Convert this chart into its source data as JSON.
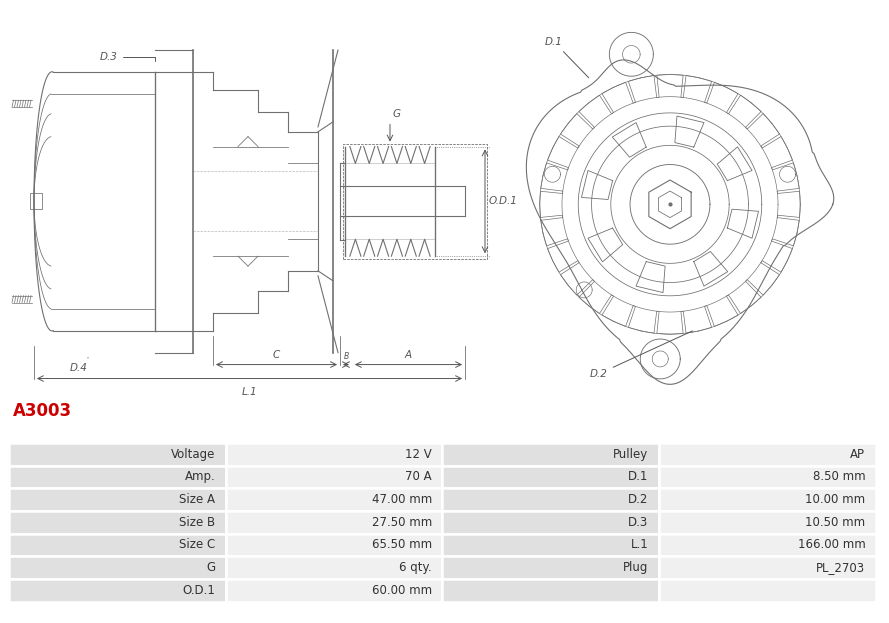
{
  "title": "A3003",
  "title_color": "#cc0000",
  "table_rows": [
    [
      "Voltage",
      "12 V",
      "Pulley",
      "AP"
    ],
    [
      "Amp.",
      "70 A",
      "D.1",
      "8.50 mm"
    ],
    [
      "Size A",
      "47.00 mm",
      "D.2",
      "10.00 mm"
    ],
    [
      "Size B",
      "27.50 mm",
      "D.3",
      "10.50 mm"
    ],
    [
      "Size C",
      "65.50 mm",
      "L.1",
      "166.00 mm"
    ],
    [
      "G",
      "6 qty.",
      "Plug",
      "PL_2703"
    ],
    [
      "O.D.1",
      "60.00 mm",
      "",
      ""
    ]
  ],
  "bg_label": "#e0e0e0",
  "bg_value": "#f0f0f0",
  "border_color": "#ffffff",
  "text_color": "#333333",
  "font_size": 8.5,
  "lc": "#707070",
  "lw": 0.8
}
